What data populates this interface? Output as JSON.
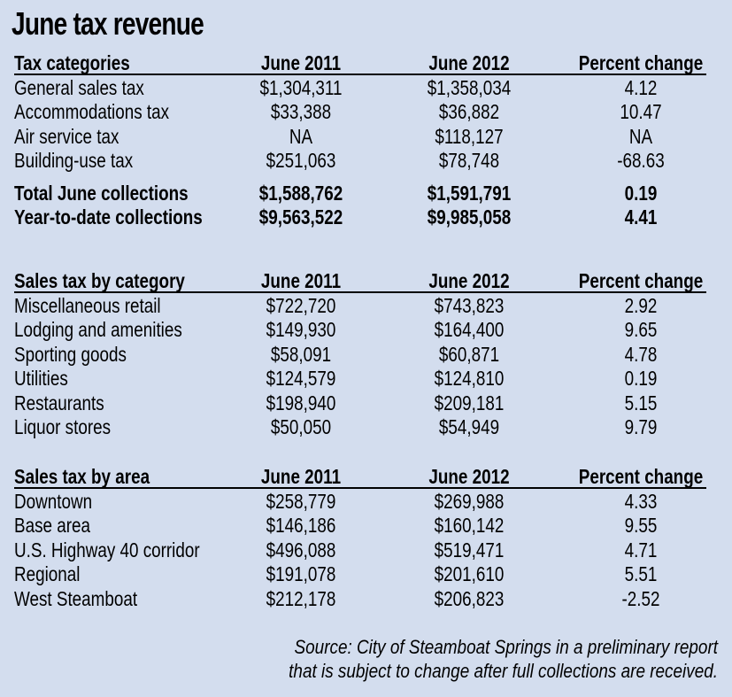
{
  "title": "June tax revenue",
  "sections": [
    {
      "header": [
        "Tax categories",
        "June 2011",
        "June 2012",
        "Percent change"
      ],
      "rows": [
        [
          "General sales tax",
          "$1,304,311",
          "$1,358,034",
          "4.12"
        ],
        [
          "Accommodations tax",
          "$33,388",
          "$36,882",
          "10.47"
        ],
        [
          "Air service tax",
          "NA",
          "$118,127",
          "NA"
        ],
        [
          "Building-use tax",
          "$251,063",
          "$78,748",
          "-68.63"
        ]
      ],
      "totals": [
        [
          "Total June collections",
          "$1,588,762",
          "$1,591,791",
          "0.19"
        ],
        [
          "Year-to-date collections",
          "$9,563,522",
          "$9,985,058",
          "4.41"
        ]
      ]
    },
    {
      "header": [
        "Sales tax by category",
        "June 2011",
        "June 2012",
        "Percent change"
      ],
      "rows": [
        [
          "Miscellaneous retail",
          "$722,720",
          "$743,823",
          "2.92"
        ],
        [
          "Lodging and amenities",
          "$149,930",
          "$164,400",
          "9.65"
        ],
        [
          "Sporting goods",
          "$58,091",
          "$60,871",
          "4.78"
        ],
        [
          "Utilities",
          "$124,579",
          "$124,810",
          "0.19"
        ],
        [
          "Restaurants",
          "$198,940",
          "$209,181",
          "5.15"
        ],
        [
          "Liquor stores",
          "$50,050",
          "$54,949",
          "9.79"
        ]
      ]
    },
    {
      "header": [
        "Sales tax by area",
        "June 2011",
        "June 2012",
        "Percent change"
      ],
      "rows": [
        [
          "Downtown",
          "$258,779",
          "$269,988",
          "4.33"
        ],
        [
          "Base area",
          "$146,186",
          "$160,142",
          "9.55"
        ],
        [
          "U.S. Highway 40 corridor",
          "$496,088",
          "$519,471",
          "4.71"
        ],
        [
          "Regional",
          "$191,078",
          "$201,610",
          "5.51"
        ],
        [
          "West Steamboat",
          "$212,178",
          "$206,823",
          "-2.52"
        ]
      ]
    }
  ],
  "source": {
    "line1": "Source: City of Steamboat Springs in a preliminary report",
    "line2": "that is subject to change after full collections are received."
  }
}
